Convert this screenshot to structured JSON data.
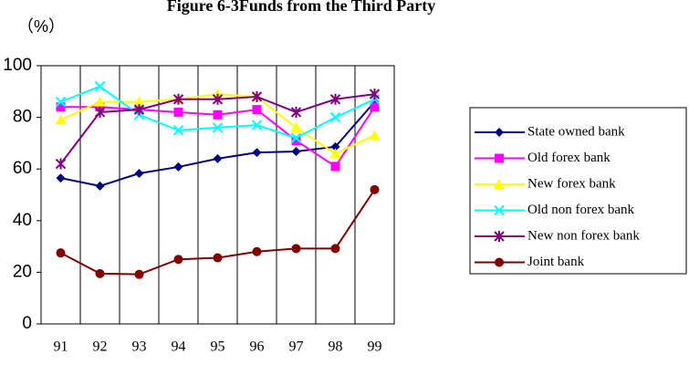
{
  "chart_data": {
    "type": "line",
    "title": "Figure 6-3Funds from the Third Party",
    "y_label": "（%）",
    "categories": [
      "91",
      "92",
      "93",
      "94",
      "95",
      "96",
      "97",
      "98",
      "99"
    ],
    "ylim": [
      0,
      100
    ],
    "yticks": [
      0,
      20,
      40,
      60,
      80,
      100
    ],
    "series": [
      {
        "name": "State owned bank",
        "color": "#000080",
        "marker": "diamond",
        "values": [
          56.5,
          53.4,
          58.3,
          60.8,
          64,
          66.4,
          66.8,
          68.6,
          86
        ]
      },
      {
        "name": "Old forex bank",
        "color": "#ff00ff",
        "marker": "square",
        "values": [
          84,
          84,
          83,
          82,
          81,
          83,
          71,
          61,
          84
        ]
      },
      {
        "name": "New forex bank",
        "color": "#ffff00",
        "marker": "triangle",
        "values": [
          79,
          86,
          86,
          87,
          89,
          88,
          76,
          66,
          73
        ]
      },
      {
        "name": "Old non forex bank",
        "color": "#00ffff",
        "marker": "x",
        "values": [
          86,
          92,
          81,
          75,
          76,
          77,
          72,
          80,
          87
        ]
      },
      {
        "name": "New non forex bank",
        "color": "#800080",
        "marker": "star",
        "values": [
          62,
          82,
          83,
          87,
          87,
          88,
          82,
          87,
          89
        ]
      },
      {
        "name": "Joint bank",
        "color": "#800000",
        "marker": "circle",
        "values": [
          27.5,
          19.5,
          19.2,
          25,
          25.6,
          28,
          29.2,
          29.2,
          52
        ]
      }
    ]
  }
}
